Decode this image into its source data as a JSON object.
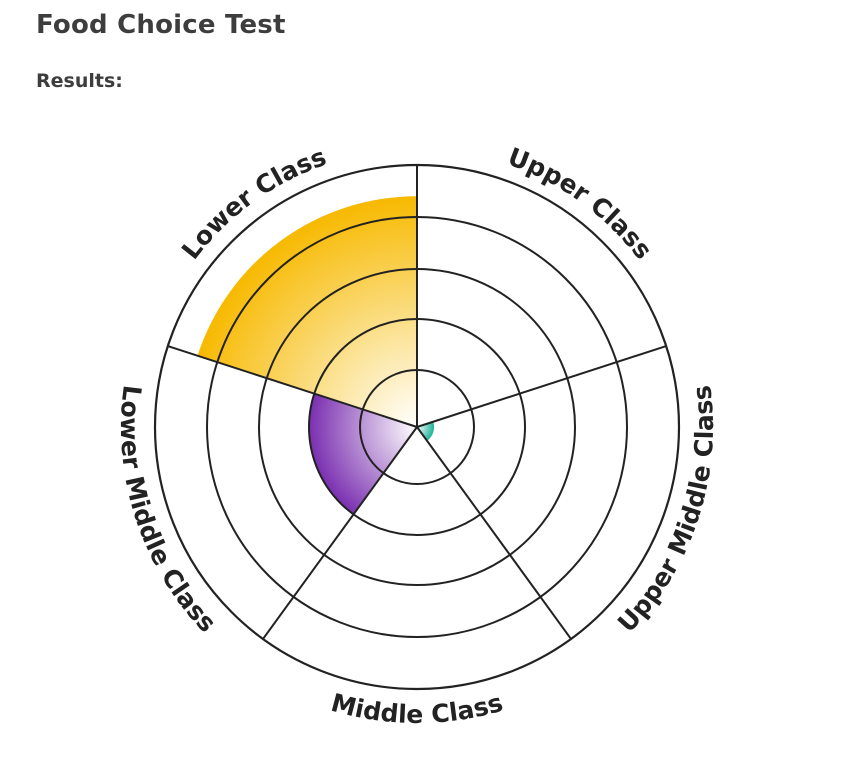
{
  "page": {
    "title": "Food Choice Test",
    "results_label": "Results:"
  },
  "chart_data": {
    "type": "radial-bar",
    "levels": 5,
    "categories": [
      "Upper Class",
      "Upper Middle Class",
      "Middle Class",
      "Lower Middle Class",
      "Lower Class"
    ],
    "values": [
      0,
      0.3,
      0,
      2,
      4.4
    ],
    "colors": {
      "Upper Class": "#4b9bd6",
      "Upper Middle Class": "#1fb19a",
      "Middle Class": "#7ac143",
      "Lower Middle Class": "#7a2fb0",
      "Lower Class": "#f7b900"
    },
    "grid": true,
    "grid_color": "#222222"
  }
}
